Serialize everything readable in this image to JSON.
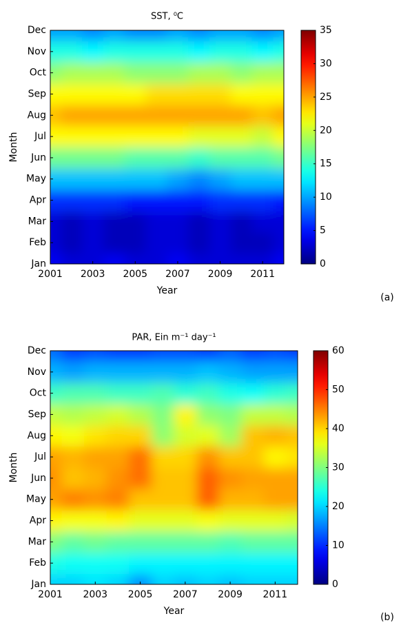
{
  "chart_data": [
    {
      "type": "heatmap",
      "title": "SST, ⁰C",
      "panel_label": "(a)",
      "x_label": "Year",
      "y_label": "Month",
      "x": [
        2001,
        2002,
        2003,
        2004,
        2005,
        2006,
        2007,
        2008,
        2009,
        2010,
        2011,
        2012
      ],
      "categories": [
        "Jan",
        "Feb",
        "Mar",
        "Apr",
        "May",
        "Jun",
        "Jul",
        "Aug",
        "Sep",
        "Oct",
        "Nov",
        "Dec"
      ],
      "xlim": [
        2001,
        2012
      ],
      "xticks": [
        2001,
        2003,
        2005,
        2007,
        2009,
        2011
      ],
      "colormap": "jet",
      "clim": [
        0,
        35
      ],
      "cticks": [
        0,
        5,
        10,
        15,
        20,
        25,
        30,
        35
      ],
      "values": [
        [
          4,
          3,
          3,
          4,
          3,
          3,
          4,
          3,
          3,
          3,
          3,
          4
        ],
        [
          3,
          2,
          3,
          2,
          2,
          3,
          3,
          2,
          3,
          2,
          2,
          3
        ],
        [
          3,
          2,
          3,
          2,
          2,
          3,
          3,
          2,
          3,
          2,
          3,
          3
        ],
        [
          6,
          6,
          6,
          6,
          5,
          5,
          5,
          5,
          6,
          6,
          6,
          5
        ],
        [
          11,
          11,
          11,
          11,
          11,
          11,
          10,
          9,
          10,
          11,
          11,
          11
        ],
        [
          17,
          17,
          17,
          17,
          16,
          16,
          16,
          15,
          16,
          16,
          16,
          17
        ],
        [
          22,
          22,
          22,
          22,
          22,
          22,
          22,
          21,
          21,
          21,
          20,
          22
        ],
        [
          24,
          25,
          25,
          25,
          25,
          25,
          25,
          25,
          25,
          25,
          24,
          25
        ],
        [
          22,
          22,
          22,
          22,
          22,
          23,
          23,
          23,
          23,
          22,
          22,
          22
        ],
        [
          18,
          19,
          19,
          19,
          18,
          18,
          18,
          19,
          19,
          18,
          19,
          19
        ],
        [
          14,
          14,
          13,
          14,
          14,
          14,
          14,
          13,
          14,
          14,
          13,
          14
        ],
        [
          10,
          10,
          9,
          10,
          9,
          9,
          10,
          9,
          10,
          10,
          9,
          10
        ]
      ]
    },
    {
      "type": "heatmap",
      "title": "PAR, Ein m⁻¹ day⁻¹",
      "panel_label": "(b)",
      "x_label": "Year",
      "y_label": "Month",
      "x": [
        2001,
        2002,
        2003,
        2004,
        2005,
        2006,
        2007,
        2008,
        2009,
        2010,
        2011,
        2012
      ],
      "categories": [
        "Jan",
        "Feb",
        "Mar",
        "Apr",
        "May",
        "Jun",
        "Jul",
        "Aug",
        "Sep",
        "Oct",
        "Nov",
        "Dec"
      ],
      "xlim": [
        2001,
        2012
      ],
      "xticks": [
        2001,
        2003,
        2005,
        2007,
        2009,
        2011
      ],
      "colormap": "jet",
      "clim": [
        0,
        60
      ],
      "cticks": [
        0,
        10,
        20,
        30,
        40,
        50,
        60
      ],
      "values": [
        [
          20,
          20,
          21,
          20,
          16,
          20,
          19,
          20,
          19,
          20,
          20,
          20
        ],
        [
          24,
          23,
          23,
          23,
          22,
          22,
          22,
          22,
          22,
          22,
          22,
          22
        ],
        [
          30,
          28,
          29,
          28,
          28,
          28,
          28,
          28,
          27,
          28,
          28,
          28
        ],
        [
          38,
          37,
          37,
          38,
          36,
          36,
          36,
          37,
          36,
          36,
          36,
          35
        ],
        [
          43,
          45,
          44,
          45,
          41,
          41,
          41,
          47,
          42,
          42,
          43,
          43
        ],
        [
          44,
          41,
          42,
          44,
          46,
          41,
          41,
          47,
          44,
          43,
          43,
          43
        ],
        [
          43,
          42,
          43,
          43,
          46,
          40,
          40,
          44,
          41,
          41,
          38,
          39
        ],
        [
          38,
          37,
          39,
          40,
          40,
          31,
          35,
          36,
          32,
          41,
          42,
          41
        ],
        [
          34,
          33,
          34,
          35,
          33,
          30,
          38,
          31,
          30,
          34,
          34,
          33
        ],
        [
          26,
          27,
          27,
          26,
          26,
          27,
          25,
          26,
          24,
          23,
          25,
          26
        ],
        [
          18,
          17,
          18,
          18,
          18,
          18,
          18,
          19,
          18,
          17,
          17,
          17
        ],
        [
          14,
          11,
          12,
          11,
          11,
          12,
          12,
          11,
          13,
          11,
          12,
          11
        ]
      ]
    }
  ]
}
